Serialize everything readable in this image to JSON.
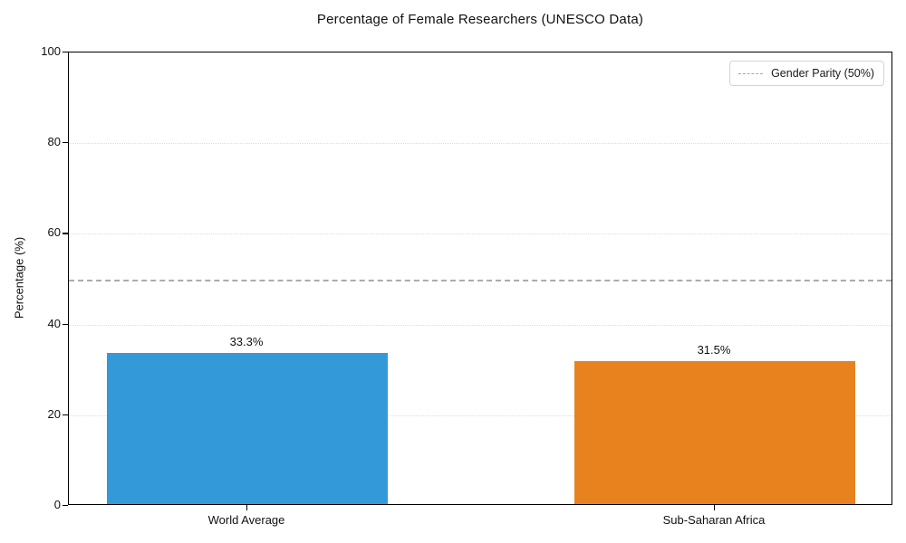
{
  "chart_data": {
    "type": "bar",
    "title": "Percentage of Female Researchers (UNESCO Data)",
    "xlabel": "",
    "ylabel": "Percentage (%)",
    "categories": [
      "World Average",
      "Sub-Saharan Africa"
    ],
    "values": [
      33.3,
      31.5
    ],
    "bar_labels": [
      "33.3%",
      "31.5%"
    ],
    "bar_colors": [
      "#3499d9",
      "#e8821e"
    ],
    "ylim": [
      0,
      100
    ],
    "yticks": [
      0,
      20,
      40,
      60,
      80,
      100
    ],
    "grid": "horizontal dotted gridlines at yticks",
    "reference_line": {
      "value": 50,
      "style": "dashed",
      "color": "#ababab"
    },
    "legend": {
      "position": "upper right",
      "entries": [
        {
          "label": "Gender Parity (50%)",
          "style": "dashed",
          "color": "#aaaaaa"
        }
      ]
    }
  }
}
